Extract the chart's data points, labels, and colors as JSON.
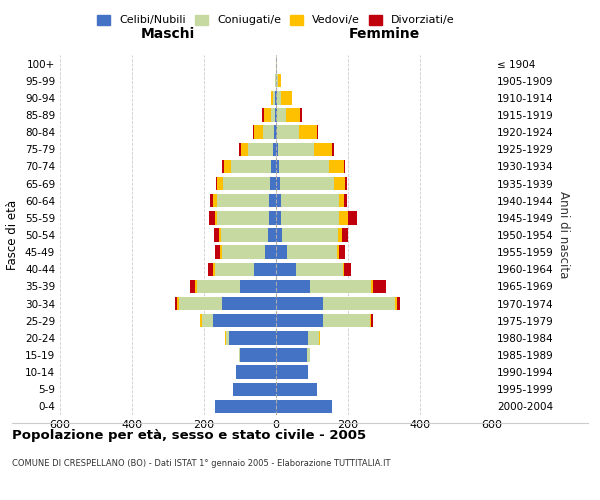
{
  "age_groups": [
    "0-4",
    "5-9",
    "10-14",
    "15-19",
    "20-24",
    "25-29",
    "30-34",
    "35-39",
    "40-44",
    "45-49",
    "50-54",
    "55-59",
    "60-64",
    "65-69",
    "70-74",
    "75-79",
    "80-84",
    "85-89",
    "90-94",
    "95-99",
    "100+"
  ],
  "birth_years": [
    "2000-2004",
    "1995-1999",
    "1990-1994",
    "1985-1989",
    "1980-1984",
    "1975-1979",
    "1970-1974",
    "1965-1969",
    "1960-1964",
    "1955-1959",
    "1950-1954",
    "1945-1949",
    "1940-1944",
    "1935-1939",
    "1930-1934",
    "1925-1929",
    "1920-1924",
    "1915-1919",
    "1910-1914",
    "1905-1909",
    "≤ 1904"
  ],
  "male_celibi": [
    170,
    120,
    110,
    100,
    130,
    175,
    150,
    100,
    60,
    30,
    22,
    20,
    20,
    18,
    15,
    8,
    5,
    3,
    2,
    0,
    0
  ],
  "male_coniugati": [
    0,
    0,
    0,
    2,
    10,
    30,
    120,
    120,
    110,
    120,
    130,
    145,
    145,
    130,
    110,
    70,
    30,
    10,
    5,
    2,
    0
  ],
  "male_vedovi": [
    0,
    0,
    0,
    0,
    2,
    5,
    5,
    5,
    5,
    5,
    5,
    5,
    10,
    15,
    20,
    20,
    25,
    20,
    8,
    2,
    0
  ],
  "male_divorziati": [
    0,
    0,
    0,
    0,
    0,
    0,
    5,
    15,
    15,
    15,
    15,
    15,
    8,
    5,
    5,
    5,
    5,
    5,
    0,
    0,
    0
  ],
  "female_celibi": [
    155,
    115,
    90,
    85,
    90,
    130,
    130,
    95,
    55,
    30,
    18,
    15,
    15,
    12,
    8,
    5,
    3,
    2,
    2,
    0,
    0
  ],
  "female_coniugati": [
    0,
    0,
    0,
    10,
    30,
    130,
    200,
    170,
    130,
    140,
    155,
    160,
    160,
    150,
    140,
    100,
    60,
    25,
    12,
    5,
    2
  ],
  "female_vedovi": [
    0,
    0,
    0,
    0,
    2,
    5,
    5,
    5,
    5,
    5,
    10,
    25,
    15,
    30,
    40,
    50,
    50,
    40,
    30,
    8,
    2
  ],
  "female_divorziati": [
    0,
    0,
    0,
    0,
    0,
    5,
    10,
    35,
    18,
    18,
    18,
    25,
    8,
    5,
    5,
    5,
    5,
    5,
    0,
    0,
    0
  ],
  "color_celibi": "#4472c4",
  "color_coniugati": "#c5d9a0",
  "color_vedovi": "#ffc000",
  "color_divorziati": "#c0000c",
  "title": "Popolazione per età, sesso e stato civile - 2005",
  "subtitle": "COMUNE DI CRESPELLANO (BO) - Dati ISTAT 1° gennaio 2005 - Elaborazione TUTTITALIA.IT",
  "xlabel_left": "Maschi",
  "xlabel_right": "Femmine",
  "ylabel_left": "Fasce di età",
  "ylabel_right": "Anni di nascita",
  "xlim": 600,
  "legend_labels": [
    "Celibi/Nubili",
    "Coniugati/e",
    "Vedovi/e",
    "Divorziati/e"
  ],
  "bg_color": "#ffffff",
  "grid_color": "#cccccc"
}
